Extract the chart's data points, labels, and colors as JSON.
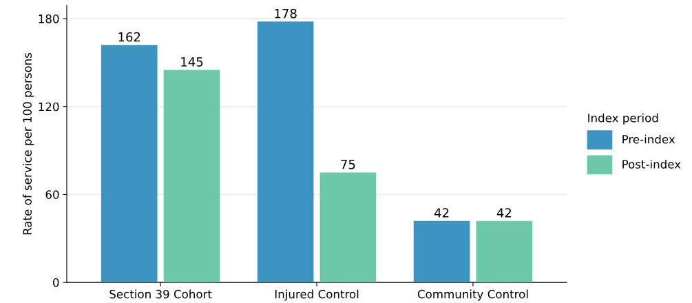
{
  "chart_data": {
    "type": "bar",
    "ylabel": "Rate of service per 100 persons",
    "legend_title": "Index period",
    "categories": [
      "Section 39 Cohort",
      "Injured Control",
      "Community Control"
    ],
    "series": [
      {
        "name": "Pre-index",
        "color": "#3d94c0",
        "values": [
          162,
          178,
          42
        ]
      },
      {
        "name": "Post-index",
        "color": "#6dc8aa",
        "values": [
          145,
          75,
          42
        ]
      }
    ],
    "ylim": [
      0,
      189
    ],
    "yticks": [
      0,
      60,
      120,
      180
    ],
    "grid": "y",
    "legend": "right",
    "data_labels": true
  }
}
